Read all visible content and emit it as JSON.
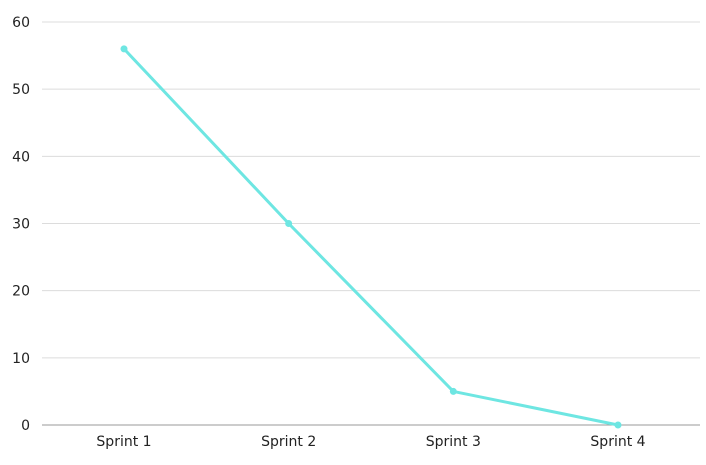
{
  "chart_data": {
    "type": "line",
    "categories": [
      "Sprint 1",
      "Sprint 2",
      "Sprint 3",
      "Sprint 4"
    ],
    "series": [
      {
        "values": [
          56,
          30,
          5,
          0
        ],
        "color": "#6ee6e2"
      }
    ],
    "yticks": [
      "0",
      "10",
      "20",
      "30",
      "40",
      "50",
      "60"
    ],
    "ylim": [
      0,
      60
    ],
    "grid": true,
    "legend": "none"
  }
}
